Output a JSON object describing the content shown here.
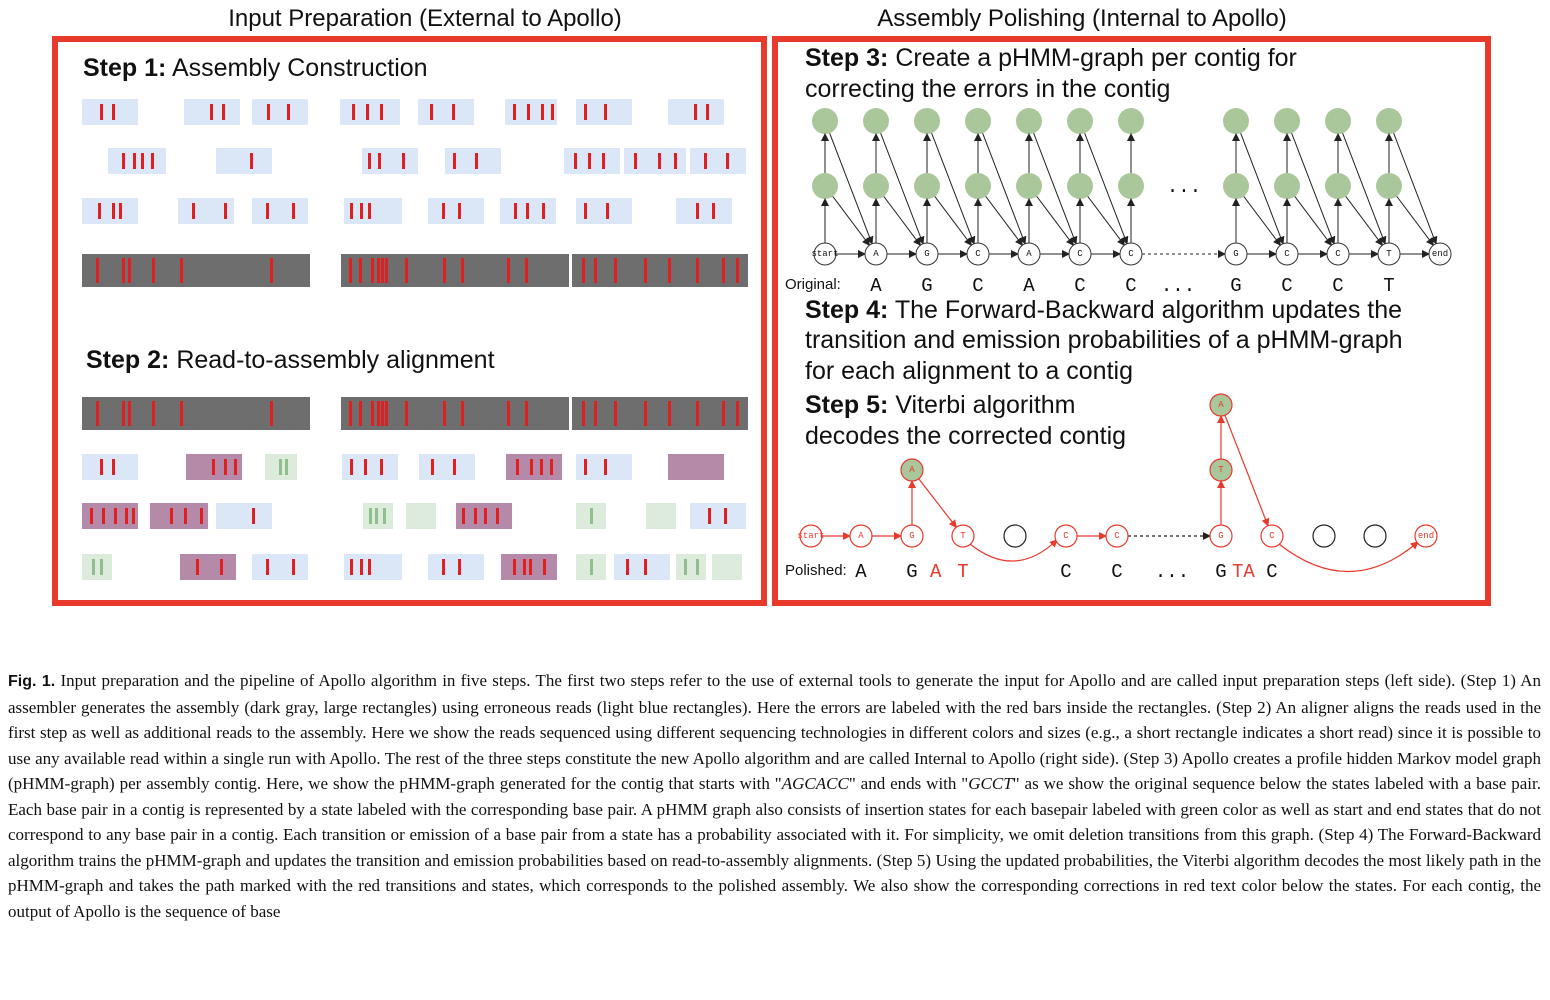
{
  "left_title": "Input Preparation (External to Apollo)",
  "right_title": "Assembly Polishing (Internal to Apollo)",
  "step1": {
    "num": "Step 1:",
    "text": "Assembly Construction"
  },
  "step2": {
    "num": "Step 2:",
    "text": "Read-to-assembly alignment"
  },
  "step3": {
    "num": "Step 3:",
    "line1": "Create a pHMM-graph per contig for",
    "line2": "correcting the errors in the contig"
  },
  "step4": {
    "num": "Step 4:",
    "line1": "The Forward-Backward algorithm updates the",
    "line2": "transition and emission probabilities of a pHMM-graph",
    "line3": "for each alignment to a contig"
  },
  "step5": {
    "num": "Step 5:",
    "line1": "Viterbi algorithm",
    "line2": "decodes the corrected contig"
  },
  "graph": {
    "start_label": "start",
    "end_label": "end",
    "states": [
      "A",
      "G",
      "C",
      "A",
      "C",
      "C",
      "G",
      "C",
      "C",
      "T"
    ],
    "ellipsis": "...",
    "original_label": "Original:",
    "original_seq": [
      "A",
      "G",
      "C",
      "A",
      "C",
      "C",
      "...",
      "G",
      "C",
      "C",
      "T"
    ]
  },
  "polished": {
    "label": "Polished:",
    "insert1": "A",
    "insert2_top": "A",
    "insert2_bottom": "T",
    "path": [
      "A",
      "G",
      "T",
      "C",
      "C",
      "G",
      "C"
    ],
    "seq_black": [
      "A",
      "G",
      "C",
      "C",
      "...",
      "G",
      "C"
    ],
    "seq_red": [
      "A",
      "T",
      "TA"
    ]
  },
  "colors": {
    "frame": "#e8392d",
    "error_bar": "#e02020",
    "read_blue": "#dbe6f7",
    "read_purple": "#b48aa8",
    "read_green": "#dcebdc",
    "assembly_gray": "#6e6e6e",
    "insert_state": "#a9c79a"
  },
  "caption": {
    "label": "Fig. 1.",
    "s1": " Input preparation and the pipeline of Apollo algorithm in five steps. The first two steps refer to the use of external tools to generate the input for Apollo and are called input preparation steps (left side). (Step 1) An assembler generates the assembly (dark gray, large rectangles) using erroneous reads (light blue rectangles). Here the errors are labeled with the red bars inside the rectangles. (Step 2) An aligner aligns the reads used in the first step as well as additional reads to the assembly. Here we show the reads sequenced using different sequencing technologies in different colors and sizes (e.g., a short rectangle indicates a short read) since it is possible to use any available read within a single run with Apollo. The rest of the three steps constitute the new Apollo algorithm and are called Internal to Apollo (right side). (Step 3) Apollo creates a profile hidden Markov model graph (pHMM-graph) per assembly contig. Here, we show the pHMM-graph generated for the contig that starts with \"",
    "m1": "AGCACC",
    "s2": "\" and ends with \"",
    "m2": "GCCT",
    "s3": "\" as we show the original sequence below the states labeled with a base pair. Each base pair in a contig is represented by a state labeled with the corresponding base pair. A pHMM graph also consists of insertion states for each basepair labeled with green color as well as start and end states that do not correspond to any base pair in a contig. Each transition or emission of a base pair from a state has a probability associated with it. For simplicity, we omit deletion transitions from this graph. (Step 4) The Forward-Backward algorithm trains the pHMM-graph and updates the transition and emission probabilities based on read-to-assembly alignments. (Step 5) Using the updated probabilities, the Viterbi algorithm decodes the most likely path in the pHMM-graph and takes the path marked with the red transitions and states, which corresponds to the polished assembly. We also show the corresponding corrections in red text color below the states. For each contig, the output of Apollo is the sequence of base"
  }
}
